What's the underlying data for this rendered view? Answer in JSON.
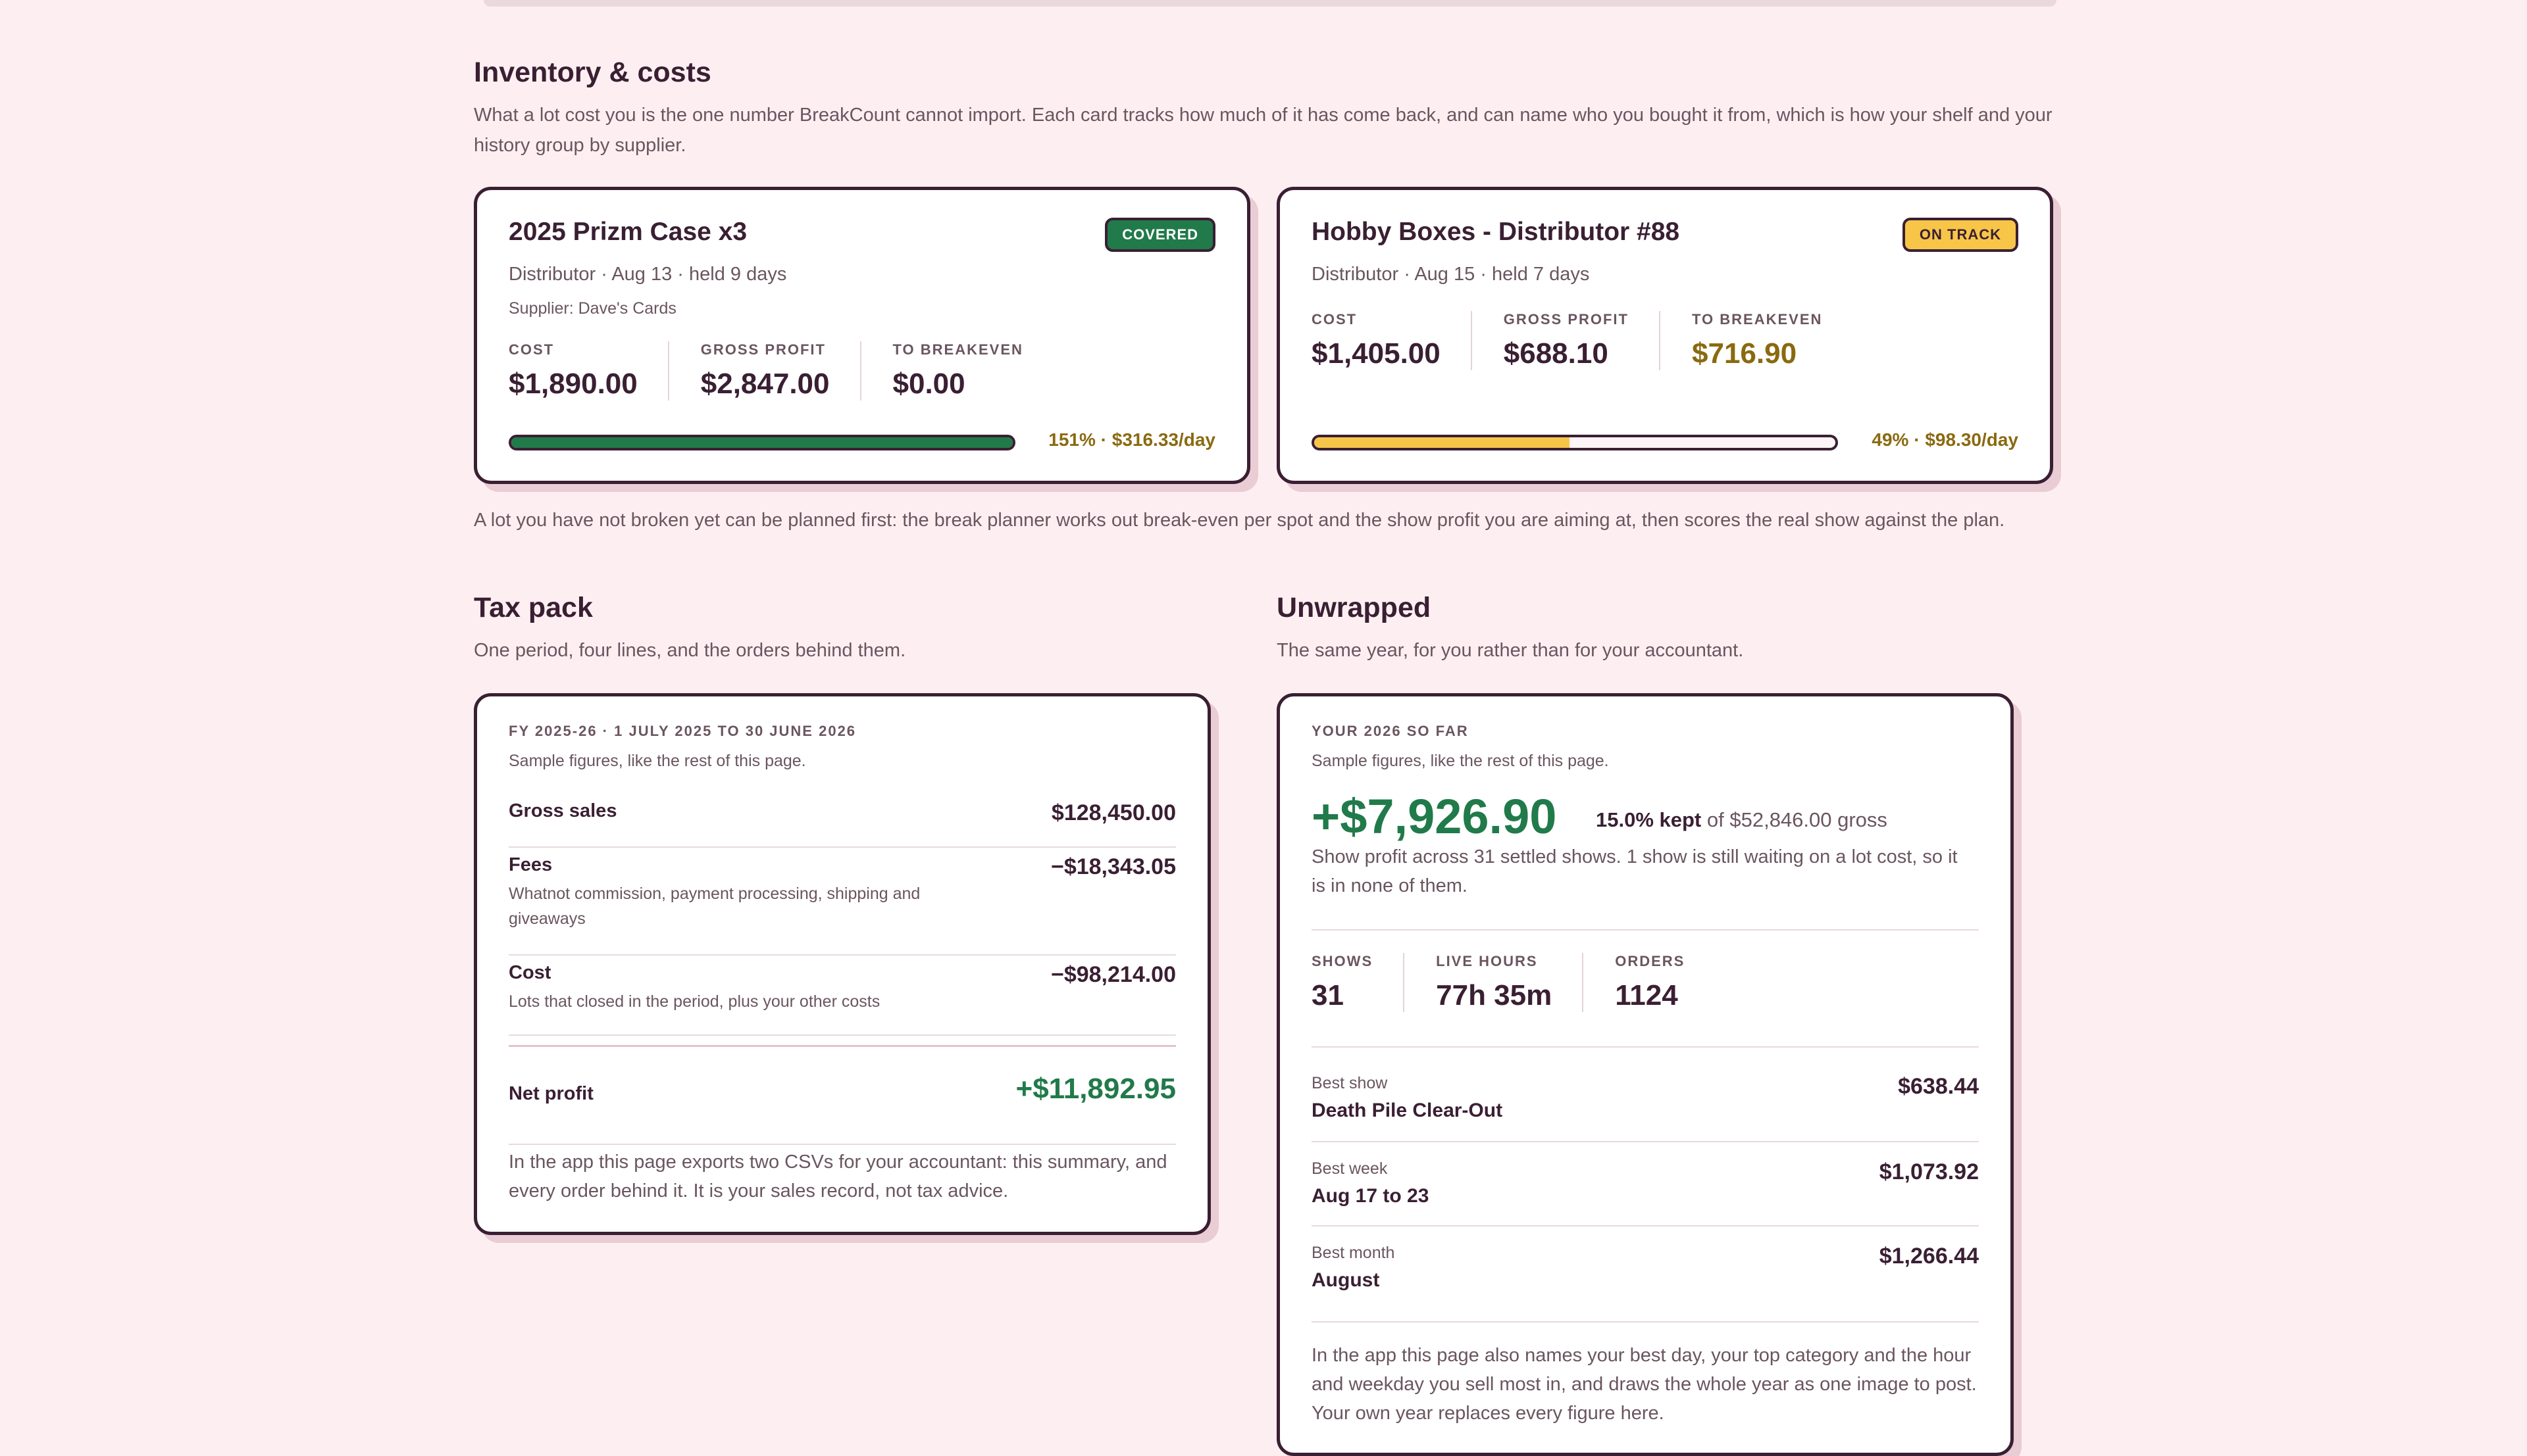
{
  "inventory": {
    "title": "Inventory & costs",
    "description": "What a lot cost you is the one number BreakCount cannot import. Each card tracks how much of it has come back, and can name who you bought it from, which is how your shelf and your history group by supplier.",
    "lots": [
      {
        "title": "2025 Prizm Case x3",
        "badge": "COVERED",
        "meta": "Distributor · Aug 13 · held 9 days",
        "supplier": "Supplier: Dave's Cards",
        "cost_label": "COST",
        "cost": "$1,890.00",
        "gross_label": "GROSS PROFIT",
        "gross": "$2,847.00",
        "breakeven_label": "TO BREAKEVEN",
        "breakeven": "$0.00",
        "progress": 1.0,
        "progress_text": "151% · $316.33/day",
        "bar_color": "#217a4a"
      },
      {
        "title": "Hobby Boxes - Distributor #88",
        "badge": "ON TRACK",
        "meta": "Distributor · Aug 15 · held 7 days",
        "cost_label": "COST",
        "cost": "$1,405.00",
        "gross_label": "GROSS PROFIT",
        "gross": "$688.10",
        "breakeven_label": "TO BREAKEVEN",
        "breakeven": "$716.90",
        "progress": 0.49,
        "progress_text": "49% · $98.30/day",
        "bar_color": "#f7c548"
      }
    ],
    "planner_note": "A lot you have not broken yet can be planned first: the break planner works out break-even per spot and the show profit you are aiming at, then scores the real show against the plan."
  },
  "tax": {
    "title": "Tax pack",
    "description": "One period, four lines, and the orders behind them.",
    "period": "FY 2025-26 · 1 JULY 2025 TO 30 JUNE 2026",
    "sample_note": "Sample figures, like the rest of this page.",
    "gross_label": "Gross sales",
    "gross_amount": "$128,450.00",
    "fees_label": "Fees",
    "fees_sub": "Whatnot commission, payment processing, shipping and giveaways",
    "fees_amount": "−$18,343.05",
    "cost_label": "Cost",
    "cost_sub": "Lots that closed in the period, plus your other costs",
    "cost_amount": "−$98,214.00",
    "net_label": "Net profit",
    "net_amount": "+$11,892.95",
    "footer": "In the app this page exports two CSVs for your accountant: this summary, and every order behind it. It is your sales record, not tax advice."
  },
  "unwrapped": {
    "title": "Unwrapped",
    "description": "The same year, for you rather than for your accountant.",
    "eyebrow": "YOUR 2026 SO FAR",
    "sample_note": "Sample figures, like the rest of this page.",
    "profit": "+$7,926.90",
    "kept_pct": "15.0% kept",
    "kept_rest": "of $52,846.00 gross",
    "summary": "Show profit across 31 settled shows. 1 show is still waiting on a lot cost, so it is in none of them.",
    "shows_label": "SHOWS",
    "shows": "31",
    "hours_label": "LIVE HOURS",
    "hours": "77h 35m",
    "orders_label": "ORDERS",
    "orders": "1124",
    "best_show_label": "Best show",
    "best_show": "Death Pile Clear-Out",
    "best_show_amount": "$638.44",
    "best_week_label": "Best week",
    "best_week": "Aug 17 to 23",
    "best_week_amount": "$1,073.92",
    "best_month_label": "Best month",
    "best_month": "August",
    "best_month_amount": "$1,266.44",
    "footer": "In the app this page also names your best day, your top category and the hour and weekday you sell most in, and draws the whole year as one image to post. Your own year replaces every figure here."
  }
}
